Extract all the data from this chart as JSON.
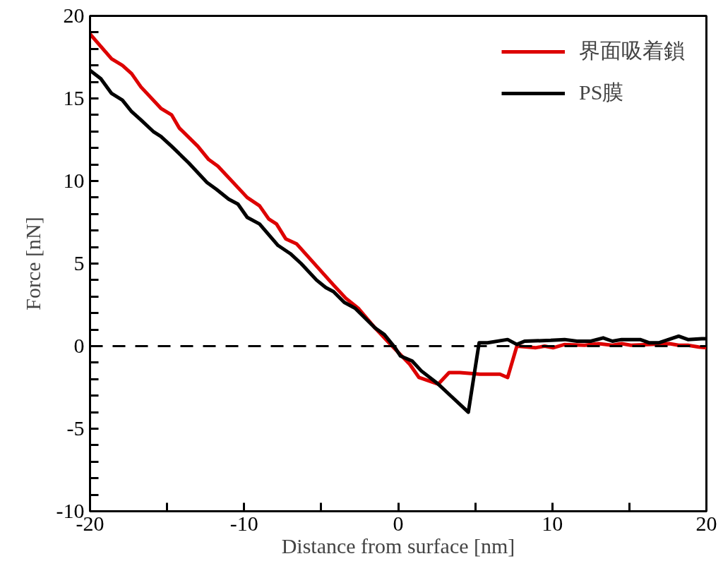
{
  "chart_data": {
    "type": "line",
    "xlabel": "Distance from surface [nm]",
    "ylabel": "Force [nN]",
    "xlim": [
      -20,
      20
    ],
    "ylim": [
      -10,
      20
    ],
    "xticks": [
      -20,
      {
        "value": -15,
        "label": null
      },
      -10,
      {
        "value": -5,
        "label": null
      },
      0,
      {
        "value": 5,
        "label": null
      },
      10,
      {
        "value": 15,
        "label": null
      },
      20
    ],
    "yticks": [
      -10,
      {
        "value": -9,
        "label": null
      },
      {
        "value": -8,
        "label": null
      },
      {
        "value": -7,
        "label": null
      },
      {
        "value": -6,
        "label": null
      },
      -5,
      {
        "value": -4,
        "label": null
      },
      {
        "value": -3,
        "label": null
      },
      {
        "value": -2,
        "label": null
      },
      {
        "value": -1,
        "label": null
      },
      0,
      {
        "value": 1,
        "label": null
      },
      {
        "value": 2,
        "label": null
      },
      {
        "value": 3,
        "label": null
      },
      {
        "value": 4,
        "label": null
      },
      5,
      {
        "value": 6,
        "label": null
      },
      {
        "value": 7,
        "label": null
      },
      {
        "value": 8,
        "label": null
      },
      {
        "value": 9,
        "label": null
      },
      10,
      {
        "value": 11,
        "label": null
      },
      {
        "value": 12,
        "label": null
      },
      {
        "value": 13,
        "label": null
      },
      {
        "value": 14,
        "label": null
      },
      15,
      {
        "value": 16,
        "label": null
      },
      {
        "value": 17,
        "label": null
      },
      {
        "value": 18,
        "label": null
      },
      {
        "value": 19,
        "label": null
      },
      20
    ],
    "grid": false,
    "legend": "top right",
    "marker": "none",
    "line_style": "solid",
    "ref_lines": [
      {
        "axis": "y",
        "value": 0,
        "label": null,
        "color": "#000000",
        "line_style": "dashed"
      }
    ],
    "series": [
      {
        "name": "界面吸着鎖",
        "color": "#dd0000",
        "x": [
          -20,
          -18.6,
          -17.9,
          -17.3,
          -16.7,
          -15.4,
          -14.7,
          -14.2,
          -13.0,
          -12.3,
          -11.7,
          -9.8,
          -9.0,
          -8.4,
          -7.9,
          -7.3,
          -6.6,
          -4.2,
          -3.4,
          -2.6,
          -1.5,
          -0.6,
          0.75,
          1.35,
          2.6,
          3.3,
          4.0,
          5.3,
          6.6,
          7.1,
          7.7,
          8.9,
          9.5,
          10.05,
          10.8,
          12.1,
          13.0,
          13.9,
          14.5,
          15.1,
          17.6,
          18.2,
          18.8,
          19.5,
          20
        ],
        "values": [
          18.9,
          17.4,
          17.0,
          16.5,
          15.7,
          14.4,
          14.0,
          13.2,
          12.1,
          11.3,
          10.9,
          9.0,
          8.5,
          7.7,
          7.4,
          6.5,
          6.2,
          3.7,
          2.9,
          2.3,
          1.1,
          0.2,
          -1.1,
          -1.9,
          -2.3,
          -1.6,
          -1.6,
          -1.7,
          -1.7,
          -1.9,
          0.0,
          -0.1,
          0.0,
          -0.1,
          0.1,
          0.05,
          0.15,
          0.05,
          0.15,
          0.05,
          0.15,
          0.05,
          0.05,
          -0.05,
          -0.1
        ]
      },
      {
        "name": "PS膜",
        "color": "#000000",
        "x": [
          -20,
          -19.3,
          -18.6,
          -17.9,
          -17.3,
          -16.7,
          -15.9,
          -15.4,
          -14.7,
          -13.6,
          -12.4,
          -11.8,
          -11.0,
          -10.4,
          -9.8,
          -9.0,
          -7.8,
          -7.0,
          -6.3,
          -5.3,
          -4.7,
          -4.2,
          -3.5,
          -2.8,
          -1.5,
          -0.9,
          -0.2,
          0.15,
          0.9,
          1.5,
          2.6,
          3.4,
          4.55,
          5.25,
          5.8,
          7.1,
          7.7,
          8.2,
          9.9,
          10.8,
          11.6,
          12.5,
          13.3,
          13.9,
          14.5,
          15.7,
          16.3,
          16.9,
          18.2,
          18.8,
          19.7,
          20
        ],
        "values": [
          16.7,
          16.2,
          15.3,
          14.9,
          14.2,
          13.7,
          13.0,
          12.7,
          12.1,
          11.1,
          9.9,
          9.5,
          8.9,
          8.6,
          7.8,
          7.4,
          6.1,
          5.6,
          5.0,
          4.0,
          3.55,
          3.3,
          2.65,
          2.3,
          1.1,
          0.7,
          -0.1,
          -0.6,
          -0.9,
          -1.5,
          -2.3,
          -3.0,
          -4.0,
          0.2,
          0.2,
          0.4,
          0.1,
          0.3,
          0.35,
          0.4,
          0.3,
          0.3,
          0.5,
          0.3,
          0.4,
          0.4,
          0.2,
          0.2,
          0.6,
          0.4,
          0.45,
          0.45
        ]
      }
    ]
  }
}
